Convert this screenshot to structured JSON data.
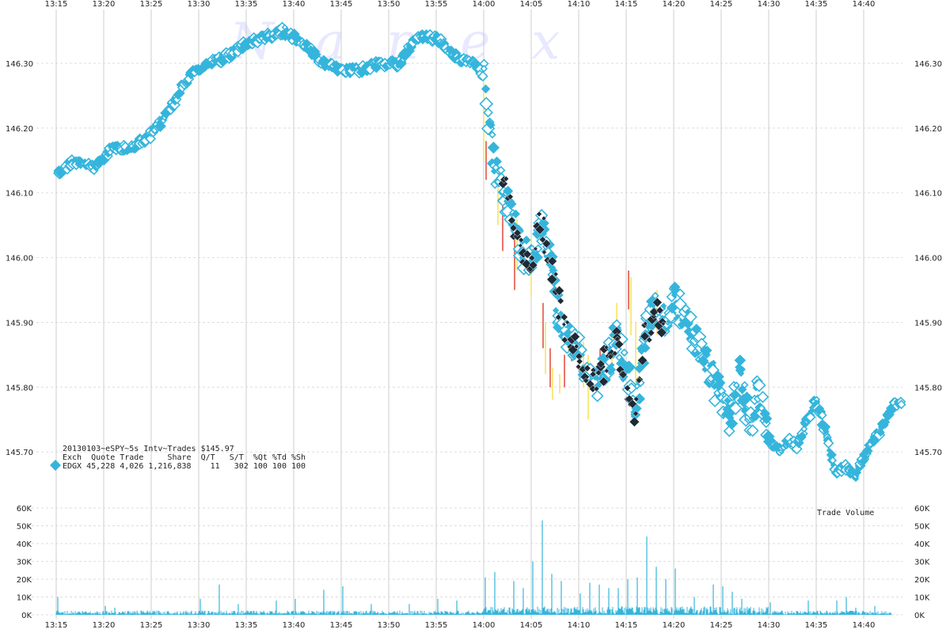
{
  "chart_data": {
    "type": "scatter",
    "watermark": "Nanex",
    "title": "20130103~eSPY~5s Intv~Trades $145.97",
    "info": {
      "header": "Exch  Quote Trade     Share  Q/T   S/T  %Qt %Td %Sh",
      "row": "EDGX 45,228 4,026 1,216,838    11   302 100 100 100"
    },
    "colors": {
      "marker": "#35b5dc",
      "dark_marker": "#1e2a36",
      "nbbo_red": "#e23a2a",
      "nbbo_yellow": "#f5e04a",
      "volume": "#35b5dc",
      "grid_vertical": "#cccccc",
      "grid_horizontal": "#dddddd"
    },
    "x_tick_labels": [
      "13:15",
      "13:20",
      "13:25",
      "13:30",
      "13:35",
      "13:40",
      "13:45",
      "13:50",
      "13:55",
      "14:00",
      "14:05",
      "14:10",
      "14:15",
      "14:20",
      "14:25",
      "14:30",
      "14:35",
      "14:40"
    ],
    "xlim": [
      "13:15",
      "14:44"
    ],
    "price_axis": {
      "ylim": [
        145.64,
        146.37
      ],
      "tick_labels": [
        "146.30",
        "146.20",
        "146.10",
        "146.00",
        "145.90",
        "145.80",
        "145.70"
      ]
    },
    "volume_axis": {
      "label": "Trade Volume",
      "ylim": [
        0,
        60000
      ],
      "tick_labels": [
        "60K",
        "50K",
        "40K",
        "30K",
        "20K",
        "10K",
        "0K"
      ]
    },
    "price_keypoints": [
      [
        "13:15",
        146.13
      ],
      [
        "13:17",
        146.15
      ],
      [
        "13:19",
        146.14
      ],
      [
        "13:21",
        146.17
      ],
      [
        "13:23",
        146.17
      ],
      [
        "13:25",
        146.19
      ],
      [
        "13:27",
        146.23
      ],
      [
        "13:29",
        146.28
      ],
      [
        "13:31",
        146.3
      ],
      [
        "13:33",
        146.31
      ],
      [
        "13:35",
        146.33
      ],
      [
        "13:37",
        146.34
      ],
      [
        "13:39",
        146.35
      ],
      [
        "13:41",
        146.33
      ],
      [
        "13:43",
        146.3
      ],
      [
        "13:45",
        146.29
      ],
      [
        "13:47",
        146.29
      ],
      [
        "13:49",
        146.3
      ],
      [
        "13:51",
        146.3
      ],
      [
        "13:53",
        146.34
      ],
      [
        "13:55",
        146.34
      ],
      [
        "13:57",
        146.31
      ],
      [
        "13:59",
        146.3
      ],
      [
        "14:00",
        146.28
      ],
      [
        "14:01",
        146.15
      ],
      [
        "14:02",
        146.1
      ],
      [
        "14:03",
        146.07
      ],
      [
        "14:04",
        146.01
      ],
      [
        "14:05",
        146.0
      ],
      [
        "14:06",
        146.05
      ],
      [
        "14:07",
        146.0
      ],
      [
        "14:08",
        145.9
      ],
      [
        "14:09",
        145.88
      ],
      [
        "14:10",
        145.85
      ],
      [
        "14:11",
        145.82
      ],
      [
        "14:12",
        145.8
      ],
      [
        "14:13",
        145.84
      ],
      [
        "14:14",
        145.88
      ],
      [
        "14:15",
        145.82
      ],
      [
        "14:16",
        145.77
      ],
      [
        "14:17",
        145.88
      ],
      [
        "14:18",
        145.93
      ],
      [
        "14:19",
        145.91
      ],
      [
        "14:20",
        145.94
      ],
      [
        "14:21",
        145.91
      ],
      [
        "14:22",
        145.88
      ],
      [
        "14:23",
        145.86
      ],
      [
        "14:25",
        145.78
      ],
      [
        "14:26",
        145.75
      ],
      [
        "14:27",
        145.82
      ],
      [
        "14:28",
        145.74
      ],
      [
        "14:29",
        145.8
      ],
      [
        "14:30",
        145.72
      ],
      [
        "14:31",
        145.7
      ],
      [
        "14:32",
        145.72
      ],
      [
        "14:33",
        145.71
      ],
      [
        "14:35",
        145.78
      ],
      [
        "14:36",
        145.73
      ],
      [
        "14:37",
        145.67
      ],
      [
        "14:38",
        145.68
      ],
      [
        "14:39",
        145.66
      ],
      [
        "14:40",
        145.69
      ],
      [
        "14:41",
        145.72
      ],
      [
        "14:42",
        145.74
      ],
      [
        "14:43",
        145.77
      ],
      [
        "14:44",
        145.78
      ]
    ],
    "dark_keypoints": [
      [
        "14:02",
        146.12
      ],
      [
        "14:03",
        146.06
      ],
      [
        "14:04",
        146.0
      ],
      [
        "14:05",
        145.98
      ],
      [
        "14:06",
        146.06
      ],
      [
        "14:07",
        145.99
      ],
      [
        "14:08",
        145.93
      ],
      [
        "14:09",
        145.87
      ],
      [
        "14:11",
        145.82
      ],
      [
        "14:12",
        145.81
      ],
      [
        "14:13",
        145.85
      ],
      [
        "14:14",
        145.87
      ],
      [
        "14:15",
        145.8
      ],
      [
        "14:16",
        145.76
      ],
      [
        "14:17",
        145.88
      ],
      [
        "14:18",
        145.92
      ],
      [
        "14:19",
        145.88
      ]
    ],
    "volume_spikes": [
      [
        "13:15",
        10000
      ],
      [
        "13:20",
        5000
      ],
      [
        "13:21",
        4000
      ],
      [
        "13:30",
        9000
      ],
      [
        "13:32",
        17000
      ],
      [
        "13:34",
        6000
      ],
      [
        "13:38",
        8000
      ],
      [
        "13:40",
        9000
      ],
      [
        "13:43",
        14000
      ],
      [
        "13:45",
        16000
      ],
      [
        "13:48",
        6000
      ],
      [
        "13:52",
        6000
      ],
      [
        "13:55",
        9000
      ],
      [
        "13:57",
        8000
      ],
      [
        "14:00",
        21000
      ],
      [
        "14:01",
        24000
      ],
      [
        "14:03",
        19000
      ],
      [
        "14:04",
        15000
      ],
      [
        "14:05",
        30000
      ],
      [
        "14:06",
        53000
      ],
      [
        "14:07",
        23000
      ],
      [
        "14:08",
        19000
      ],
      [
        "14:10",
        12000
      ],
      [
        "14:11",
        18000
      ],
      [
        "14:12",
        17000
      ],
      [
        "14:13",
        15000
      ],
      [
        "14:14",
        15000
      ],
      [
        "14:15",
        20000
      ],
      [
        "14:16",
        21000
      ],
      [
        "14:17",
        44000
      ],
      [
        "14:18",
        27000
      ],
      [
        "14:19",
        20000
      ],
      [
        "14:20",
        26000
      ],
      [
        "14:22",
        10000
      ],
      [
        "14:24",
        17000
      ],
      [
        "14:25",
        16000
      ],
      [
        "14:26",
        13000
      ],
      [
        "14:27",
        9000
      ],
      [
        "14:30",
        7000
      ],
      [
        "14:34",
        8000
      ],
      [
        "14:37",
        8000
      ],
      [
        "14:38",
        10000
      ],
      [
        "14:39",
        4000
      ],
      [
        "14:41",
        5000
      ]
    ],
    "nbbo_segments": [
      {
        "color": "#f5e04a",
        "t": "14:00",
        "y1": 146.27,
        "y2": 146.15
      },
      {
        "color": "#e23a2a",
        "t": "14:00",
        "y1": 146.18,
        "y2": 146.12
      },
      {
        "color": "#f5e04a",
        "t": "14:01",
        "y1": 146.14,
        "y2": 146.05
      },
      {
        "color": "#e23a2a",
        "t": "14:02",
        "y1": 146.09,
        "y2": 146.01
      },
      {
        "color": "#e23a2a",
        "t": "14:03",
        "y1": 146.05,
        "y2": 145.95
      },
      {
        "color": "#f5e04a",
        "t": "14:03",
        "y1": 146.06,
        "y2": 145.98
      },
      {
        "color": "#f5e04a",
        "t": "14:05",
        "y1": 146.03,
        "y2": 145.94
      },
      {
        "color": "#e23a2a",
        "t": "14:06",
        "y1": 145.93,
        "y2": 145.86
      },
      {
        "color": "#f5e04a",
        "t": "14:06",
        "y1": 145.9,
        "y2": 145.82
      },
      {
        "color": "#e23a2a",
        "t": "14:07",
        "y1": 145.86,
        "y2": 145.8
      },
      {
        "color": "#f5e04a",
        "t": "14:07",
        "y1": 145.83,
        "y2": 145.78
      },
      {
        "color": "#e23a2a",
        "t": "14:08",
        "y1": 145.85,
        "y2": 145.8
      },
      {
        "color": "#f5e04a",
        "t": "14:08",
        "y1": 145.82,
        "y2": 145.79
      },
      {
        "color": "#e23a2a",
        "t": "14:09",
        "y1": 145.88,
        "y2": 145.84
      },
      {
        "color": "#f5e04a",
        "t": "14:10",
        "y1": 145.87,
        "y2": 145.8
      },
      {
        "color": "#f5e04a",
        "t": "14:11",
        "y1": 145.85,
        "y2": 145.75
      },
      {
        "color": "#e23a2a",
        "t": "14:12",
        "y1": 145.86,
        "y2": 145.8
      },
      {
        "color": "#f5e04a",
        "t": "14:13",
        "y1": 145.89,
        "y2": 145.82
      },
      {
        "color": "#f5e04a",
        "t": "14:14",
        "y1": 145.93,
        "y2": 145.85
      },
      {
        "color": "#e23a2a",
        "t": "14:15",
        "y1": 145.98,
        "y2": 145.92
      },
      {
        "color": "#f5e04a",
        "t": "14:15",
        "y1": 145.97,
        "y2": 145.88
      },
      {
        "color": "#f5e04a",
        "t": "14:16",
        "y1": 145.9,
        "y2": 145.8
      },
      {
        "color": "#f5e04a",
        "t": "14:18",
        "y1": 145.95,
        "y2": 145.88
      }
    ]
  }
}
